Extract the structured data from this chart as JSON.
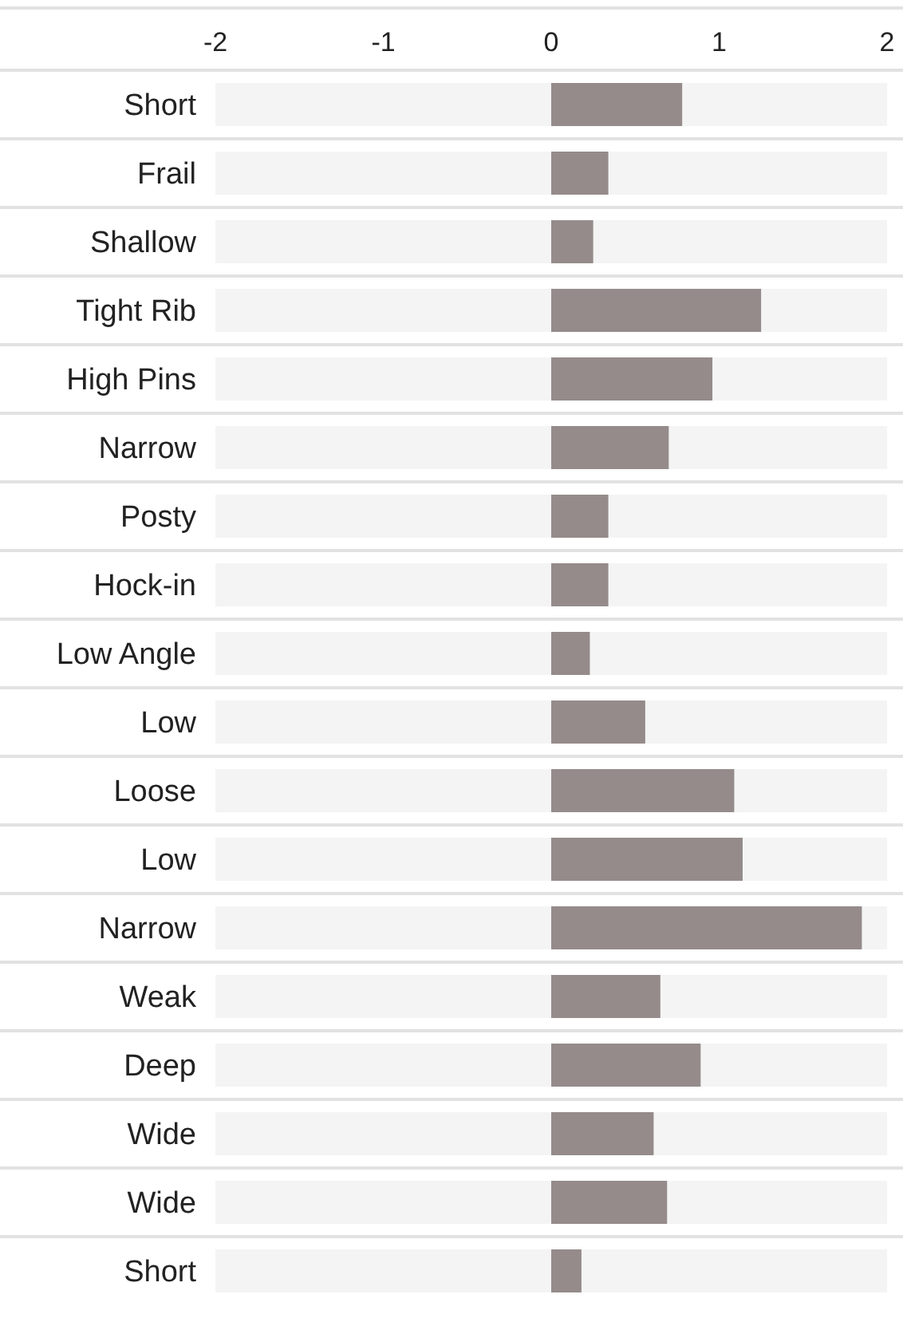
{
  "chart_data": {
    "type": "bar",
    "orientation": "horizontal",
    "categories": [
      "Short",
      "Frail",
      "Shallow",
      "Tight Rib",
      "High Pins",
      "Narrow",
      "Posty",
      "Hock-in",
      "Low Angle",
      "Low",
      "Loose",
      "Low",
      "Narrow",
      "Weak",
      "Deep",
      "Wide",
      "Wide",
      "Short"
    ],
    "values": [
      0.78,
      0.34,
      0.25,
      1.25,
      0.96,
      0.7,
      0.34,
      0.34,
      0.23,
      0.56,
      1.09,
      1.14,
      1.85,
      0.65,
      0.89,
      0.61,
      0.69,
      0.18
    ],
    "color": "#958b8b",
    "xlim": [
      -2,
      2
    ],
    "xticks": [
      -2,
      -1,
      0,
      1,
      2
    ],
    "grid": "y"
  }
}
